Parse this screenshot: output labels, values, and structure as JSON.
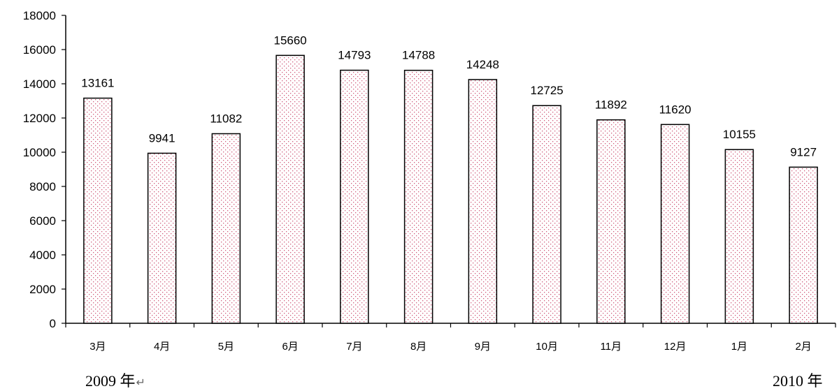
{
  "chart_data": {
    "type": "bar",
    "categories": [
      "3月",
      "4月",
      "5月",
      "6月",
      "7月",
      "8月",
      "9月",
      "10月",
      "11月",
      "12月",
      "1月",
      "2月"
    ],
    "values": [
      13161,
      9941,
      11082,
      15660,
      14793,
      14788,
      14248,
      12725,
      11892,
      11620,
      10155,
      9127
    ],
    "data_labels": [
      "13161",
      "9941",
      "11082",
      "15660",
      "14793",
      "14788",
      "14248",
      "12725",
      "11892",
      "11620",
      "10155",
      "9127"
    ],
    "ylim": [
      0,
      18000
    ],
    "yticks": [
      "0",
      "2000",
      "4000",
      "6000",
      "8000",
      "10000",
      "12000",
      "14000",
      "16000",
      "18000"
    ],
    "bar_fill": "#ffffff",
    "bar_dot_color": "#d05a7a",
    "bar_stroke": "#000000",
    "grid": false,
    "legend": "none"
  },
  "year_labels": {
    "left": "2009 年",
    "left_mark": "↵",
    "right": "2010 年"
  }
}
